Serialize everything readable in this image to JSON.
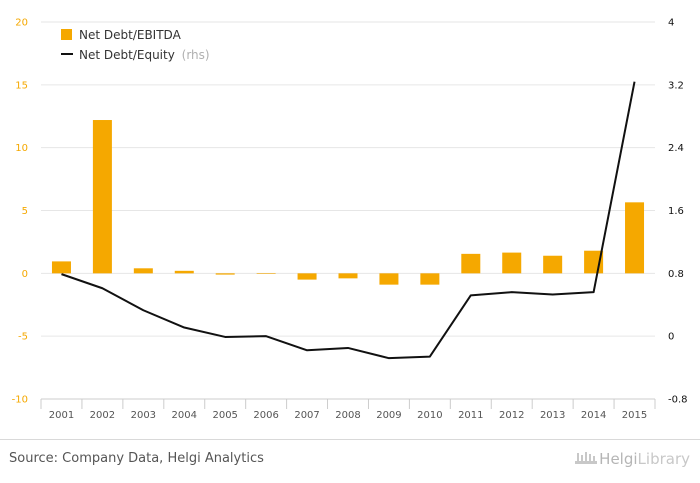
{
  "chart_data": {
    "type": "bar",
    "categories": [
      "2001",
      "2002",
      "2003",
      "2004",
      "2005",
      "2006",
      "2007",
      "2008",
      "2009",
      "2010",
      "2011",
      "2012",
      "2013",
      "2014",
      "2015"
    ],
    "series": [
      {
        "name": "Net Debt/EBITDA",
        "type": "bar",
        "axis": "left",
        "color": "#f5a800",
        "values": [
          0.95,
          12.2,
          0.4,
          0.2,
          -0.1,
          0.0,
          -0.5,
          -0.4,
          -0.9,
          -0.9,
          1.55,
          1.65,
          1.4,
          1.8,
          5.65
        ]
      },
      {
        "name": "Net Debt/Equity",
        "name_suffix": "(rhs)",
        "type": "line",
        "axis": "right",
        "color": "#111111",
        "values": [
          0.79,
          0.61,
          0.33,
          0.11,
          -0.01,
          0.0,
          -0.18,
          -0.15,
          -0.28,
          -0.26,
          0.52,
          0.56,
          0.53,
          0.56,
          3.24
        ]
      }
    ],
    "y_left": {
      "ticks": [
        "20",
        "15",
        "10",
        "5",
        "0",
        "-5",
        "-10"
      ],
      "min": -10,
      "max": 20,
      "color": "#f5a800"
    },
    "y_right": {
      "ticks": [
        "4",
        "3.2",
        "2.4",
        "1.6",
        "0.8",
        "0",
        "-0.8"
      ],
      "min": -0.8,
      "max": 4,
      "color": "#111111"
    },
    "grid": true,
    "legend_position": "top-left"
  },
  "footer": {
    "source": "Source: Company Data, Helgi Analytics",
    "logo_left": "Helgi",
    "logo_right": "Library"
  }
}
